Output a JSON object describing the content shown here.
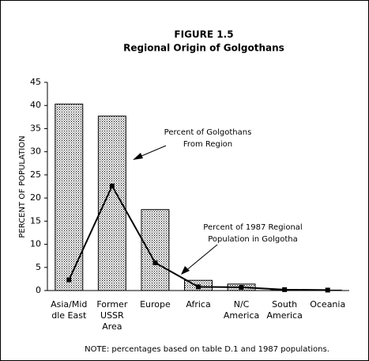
{
  "chart_data": {
    "type": "bar",
    "title": "FIGURE 1.5",
    "subtitle": "Regional Origin of Golgothans",
    "y_label": "PERCENT OF POPULATION",
    "note": "NOTE: percentages based on table D.1 and 1987 populations.",
    "categories": [
      [
        "Asia/Mid",
        "dle East"
      ],
      [
        "Former",
        "USSR",
        "Area"
      ],
      [
        "Europe"
      ],
      [
        "Africa"
      ],
      [
        "N/C",
        "America"
      ],
      [
        "South",
        "America"
      ],
      [
        "Oceania"
      ]
    ],
    "series": [
      {
        "type": "bar",
        "color": "#888888",
        "values": [
          40.3,
          37.7,
          17.5,
          2.2,
          1.4,
          0.2,
          0.1
        ]
      },
      {
        "type": "line",
        "color": "#000000",
        "values": [
          2.3,
          22.6,
          6,
          0.8,
          0.7,
          0.2,
          0.1
        ]
      }
    ],
    "annotations": [
      [
        "Percent of Golgothans",
        "From Region"
      ],
      [
        "Percent of 1987 Regional",
        "Population in Golgotha"
      ]
    ],
    "ylim": [
      0,
      45
    ],
    "yticks": [
      0,
      5,
      10,
      15,
      20,
      25,
      30,
      35,
      40,
      45
    ],
    "grid": false
  }
}
